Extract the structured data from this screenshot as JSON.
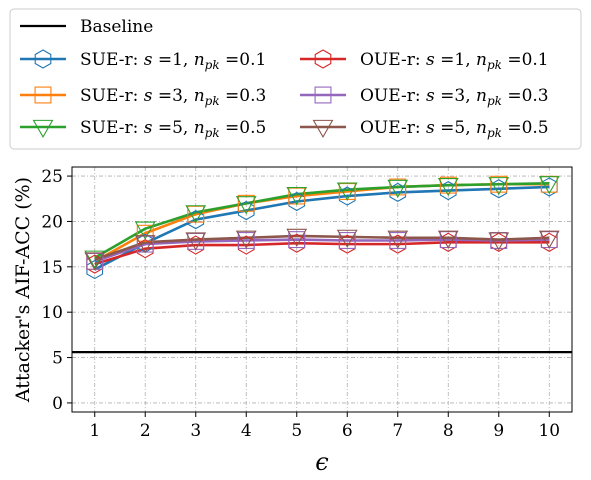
{
  "chart_data": {
    "type": "line",
    "xlabel": "ϵ",
    "ylabel": "Attacker's AIF-ACC (%)",
    "x": [
      1,
      2,
      3,
      4,
      5,
      6,
      7,
      8,
      9,
      10
    ],
    "xlim": [
      0.55,
      10.45
    ],
    "ylim": [
      -1,
      26
    ],
    "yticks": [
      0,
      5,
      10,
      15,
      20,
      25
    ],
    "grid": true,
    "legend_position": "top",
    "baseline": {
      "name": "Baseline",
      "value": 5.6,
      "color": "#000000"
    },
    "series": [
      {
        "name": "SUE-r: s =1, n_pk =0.1",
        "label_main": "SUE-r: ",
        "s": "1",
        "npk": "0.1",
        "marker": "hexagon",
        "color": "#1f77b4",
        "values": [
          14.7,
          17.6,
          20.2,
          21.2,
          22.2,
          22.8,
          23.2,
          23.4,
          23.6,
          23.8
        ]
      },
      {
        "name": "SUE-r: s =3, n_pk =0.3",
        "label_main": "SUE-r: ",
        "s": "3",
        "npk": "0.3",
        "marker": "square",
        "color": "#ff7f0e",
        "values": [
          15.6,
          18.7,
          20.8,
          22.0,
          22.8,
          23.3,
          23.8,
          24.0,
          24.1,
          24.1
        ]
      },
      {
        "name": "SUE-r: s =5, n_pk =0.5",
        "label_main": "SUE-r: ",
        "s": "5",
        "npk": "0.5",
        "marker": "triangle-down",
        "color": "#2ca02c",
        "values": [
          16.0,
          19.2,
          21.0,
          22.0,
          23.0,
          23.5,
          23.8,
          24.0,
          24.1,
          24.2
        ]
      },
      {
        "name": "OUE-r: s =1, n_pk =0.1",
        "label_main": "OUE-r: ",
        "s": "1",
        "npk": "0.1",
        "marker": "hexagon",
        "color": "#d62728",
        "values": [
          15.3,
          17.0,
          17.4,
          17.4,
          17.6,
          17.5,
          17.5,
          17.7,
          17.7,
          17.7
        ]
      },
      {
        "name": "OUE-r: s =3, n_pk =0.3",
        "label_main": "OUE-r: ",
        "s": "3",
        "npk": "0.3",
        "marker": "square",
        "color": "#9467bd",
        "values": [
          15.6,
          17.5,
          17.8,
          17.9,
          18.0,
          17.9,
          17.9,
          18.0,
          17.9,
          18.0
        ]
      },
      {
        "name": "OUE-r: s =5, n_pk =0.5",
        "label_main": "OUE-r: ",
        "s": "5",
        "npk": "0.5",
        "marker": "triangle-down",
        "color": "#8c564b",
        "values": [
          15.8,
          17.7,
          18.0,
          18.2,
          18.4,
          18.3,
          18.2,
          18.2,
          18.0,
          18.2
        ]
      }
    ]
  }
}
